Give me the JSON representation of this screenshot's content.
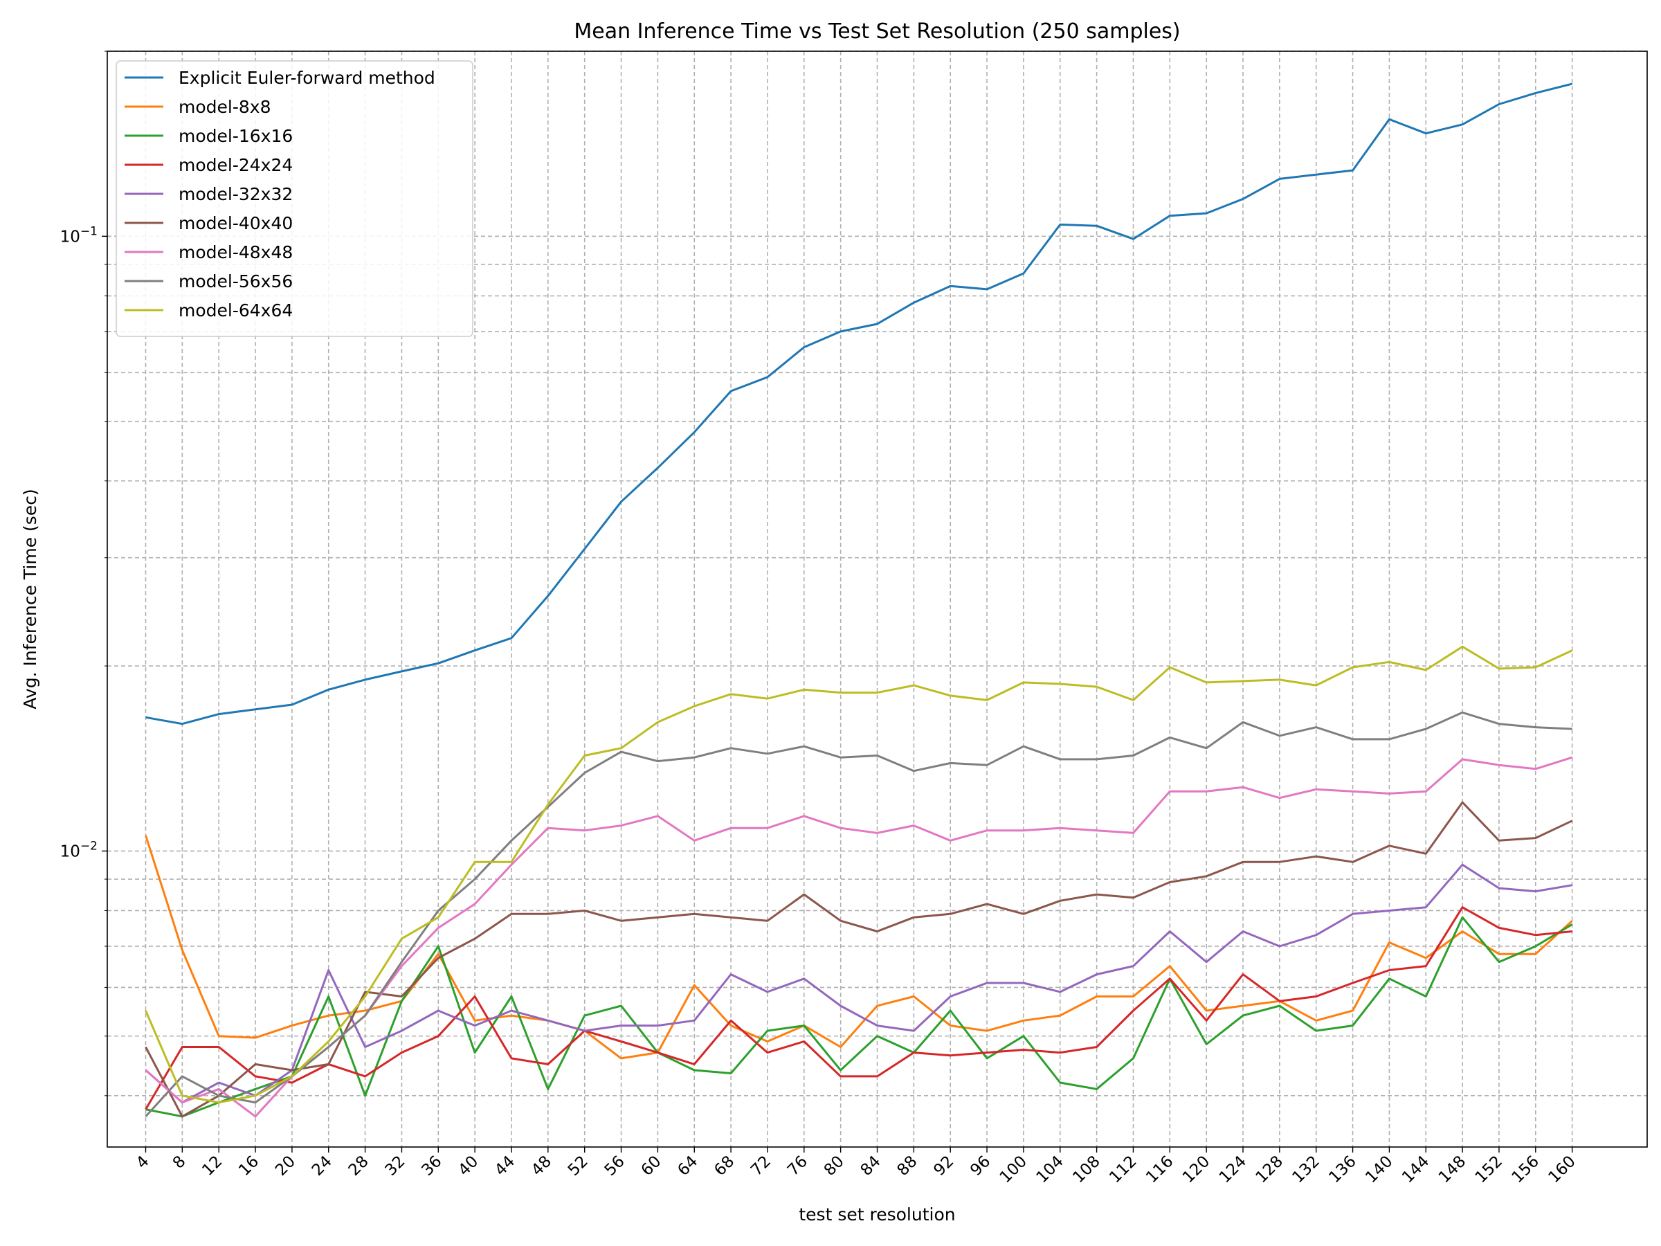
{
  "chart_data": {
    "type": "line",
    "title": "Mean Inference Time vs Test Set Resolution (250 samples)",
    "xlabel": "test set resolution",
    "ylabel": "Avg. Inference Time (sec)",
    "yscale": "log",
    "ylim": [
      0.0033,
      0.2
    ],
    "y_tick_labels": [
      "10^-2",
      "10^-1"
    ],
    "grid": true,
    "legend_position": "upper-left",
    "x": [
      4,
      8,
      12,
      16,
      20,
      24,
      28,
      32,
      36,
      40,
      44,
      48,
      52,
      56,
      60,
      64,
      68,
      72,
      76,
      80,
      84,
      88,
      92,
      96,
      100,
      104,
      108,
      112,
      116,
      120,
      124,
      128,
      132,
      136,
      140,
      144,
      148,
      152,
      156,
      160
    ],
    "series": [
      {
        "name": "Explicit Euler-forward method",
        "color": "#1f77b4",
        "values": [
          0.0165,
          0.0161,
          0.0167,
          0.017,
          0.0173,
          0.0183,
          0.019,
          0.0196,
          0.0202,
          0.0212,
          0.0222,
          0.026,
          0.031,
          0.037,
          0.042,
          0.048,
          0.056,
          0.059,
          0.066,
          0.07,
          0.072,
          0.078,
          0.083,
          0.082,
          0.087,
          0.1045,
          0.104,
          0.099,
          0.108,
          0.109,
          0.115,
          0.124,
          0.126,
          0.128,
          0.155,
          0.147,
          0.152,
          0.164,
          0.171,
          0.177
        ]
      },
      {
        "name": "model-8x8",
        "color": "#ff7f0e",
        "values": [
          0.0106,
          0.0069,
          0.005,
          0.00497,
          0.0052,
          0.0054,
          0.0055,
          0.0057,
          0.0068,
          0.0053,
          0.0054,
          0.0053,
          0.0051,
          0.0046,
          0.0047,
          0.00605,
          0.0052,
          0.0049,
          0.0052,
          0.0048,
          0.0056,
          0.0058,
          0.0052,
          0.0051,
          0.0053,
          0.0054,
          0.0058,
          0.0058,
          0.0065,
          0.0055,
          0.0056,
          0.0057,
          0.0053,
          0.0055,
          0.0071,
          0.0067,
          0.0074,
          0.0068,
          0.0068,
          0.0077
        ]
      },
      {
        "name": "model-16x16",
        "color": "#2ca02c",
        "values": [
          0.0038,
          0.0037,
          0.0039,
          0.0041,
          0.0043,
          0.0058,
          0.004,
          0.0057,
          0.007,
          0.0047,
          0.0058,
          0.0041,
          0.0054,
          0.0056,
          0.0047,
          0.0044,
          0.00435,
          0.0051,
          0.0052,
          0.0044,
          0.005,
          0.0047,
          0.0055,
          0.0046,
          0.005,
          0.0042,
          0.0041,
          0.0046,
          0.0062,
          0.00485,
          0.0054,
          0.0056,
          0.0051,
          0.0052,
          0.0062,
          0.0058,
          0.0078,
          0.0066,
          0.007,
          0.0076
        ]
      },
      {
        "name": "model-24x24",
        "color": "#d62728",
        "values": [
          0.0038,
          0.0048,
          0.0048,
          0.0043,
          0.0042,
          0.0045,
          0.0043,
          0.0047,
          0.005,
          0.0058,
          0.0046,
          0.0045,
          0.0051,
          0.0049,
          0.0047,
          0.0045,
          0.0053,
          0.0047,
          0.0049,
          0.0043,
          0.0043,
          0.0047,
          0.00465,
          0.0047,
          0.00475,
          0.0047,
          0.0048,
          0.0055,
          0.0062,
          0.0053,
          0.0063,
          0.0057,
          0.0058,
          0.0061,
          0.0064,
          0.0065,
          0.0081,
          0.0075,
          0.0073,
          0.0074
        ]
      },
      {
        "name": "model-32x32",
        "color": "#9467bd",
        "values": [
          0.0044,
          0.0039,
          0.0042,
          0.004,
          0.0044,
          0.0064,
          0.0048,
          0.0051,
          0.0055,
          0.0052,
          0.0055,
          0.0053,
          0.0051,
          0.0052,
          0.0052,
          0.0053,
          0.0063,
          0.0059,
          0.0062,
          0.0056,
          0.0052,
          0.0051,
          0.0058,
          0.0061,
          0.0061,
          0.0059,
          0.0063,
          0.0065,
          0.0074,
          0.0066,
          0.0074,
          0.007,
          0.0073,
          0.0079,
          0.008,
          0.0081,
          0.0095,
          0.0087,
          0.0086,
          0.0088
        ]
      },
      {
        "name": "model-40x40",
        "color": "#8c564b",
        "values": [
          0.0048,
          0.0037,
          0.004,
          0.0045,
          0.0044,
          0.0045,
          0.0059,
          0.0058,
          0.0067,
          0.0072,
          0.0079,
          0.0079,
          0.008,
          0.0077,
          0.0078,
          0.0079,
          0.0078,
          0.0077,
          0.0085,
          0.0077,
          0.0074,
          0.0078,
          0.0079,
          0.0082,
          0.0079,
          0.0083,
          0.0085,
          0.0084,
          0.0089,
          0.0091,
          0.0096,
          0.0096,
          0.0098,
          0.0096,
          0.0102,
          0.0099,
          0.012,
          0.0104,
          0.0105,
          0.0112
        ]
      },
      {
        "name": "model-48x48",
        "color": "#e377c2",
        "values": [
          0.0044,
          0.0039,
          0.0041,
          0.0037,
          0.0043,
          0.0048,
          0.0054,
          0.0065,
          0.0075,
          0.0082,
          0.0095,
          0.0109,
          0.0108,
          0.011,
          0.0114,
          0.0104,
          0.0109,
          0.0109,
          0.0114,
          0.0109,
          0.0107,
          0.011,
          0.0104,
          0.0108,
          0.0108,
          0.0109,
          0.0108,
          0.0107,
          0.0125,
          0.0125,
          0.0127,
          0.0122,
          0.0126,
          0.0125,
          0.0124,
          0.0125,
          0.0141,
          0.0138,
          0.0136,
          0.0142
        ]
      },
      {
        "name": "model-56x56",
        "color": "#7f7f7f",
        "values": [
          0.0037,
          0.0043,
          0.004,
          0.0039,
          0.0043,
          0.0048,
          0.0054,
          0.0066,
          0.008,
          0.009,
          0.0104,
          0.0118,
          0.0134,
          0.0145,
          0.014,
          0.0142,
          0.0147,
          0.0144,
          0.0148,
          0.0142,
          0.0143,
          0.0135,
          0.0139,
          0.0138,
          0.0148,
          0.0141,
          0.0141,
          0.0143,
          0.0153,
          0.0147,
          0.0162,
          0.0154,
          0.0159,
          0.0152,
          0.0152,
          0.0158,
          0.0168,
          0.0161,
          0.0159,
          0.0158
        ]
      },
      {
        "name": "model-64x64",
        "color": "#bcbd22",
        "values": [
          0.0055,
          0.004,
          0.0039,
          0.004,
          0.0043,
          0.0049,
          0.0058,
          0.0072,
          0.0078,
          0.0096,
          0.0096,
          0.0119,
          0.0143,
          0.0147,
          0.0162,
          0.0172,
          0.018,
          0.0177,
          0.0183,
          0.0181,
          0.0181,
          0.0186,
          0.0179,
          0.0176,
          0.0188,
          0.0187,
          0.0185,
          0.0176,
          0.0199,
          0.0188,
          0.0189,
          0.019,
          0.0186,
          0.0199,
          0.0203,
          0.0197,
          0.0215,
          0.0198,
          0.0199,
          0.0212
        ]
      }
    ]
  }
}
